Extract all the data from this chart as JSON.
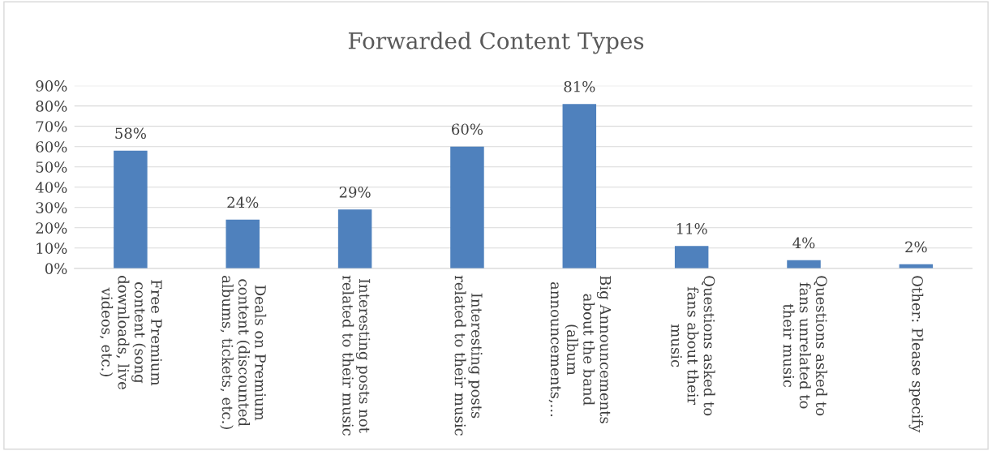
{
  "chart_data": {
    "type": "bar",
    "title": "Forwarded Content Types",
    "categories": [
      "Free Premium\ncontent (song\ndownloads, live\nvideos, etc.)",
      "Deals on Premium\ncontent (discounted\nalbums, tickets, etc.)",
      "Interesting posts not\nrelated to their music",
      "Interesting posts\nrelated to their music",
      "Big Announcements\nabout the band\n(album\nannouncements,...",
      "Questions asked to\nfans about their\nmusic",
      "Questions asked to\nfans unrelated to\ntheir music",
      "Other: Please specify"
    ],
    "values": [
      58,
      24,
      29,
      60,
      81,
      11,
      4,
      2
    ],
    "value_labels": [
      "58%",
      "24%",
      "29%",
      "60%",
      "81%",
      "11%",
      "4%",
      "2%"
    ],
    "color": "#4f81bd",
    "ylim": [
      0,
      90
    ],
    "yticks": [
      {
        "value": 0,
        "label": "0%"
      },
      {
        "value": 10,
        "label": "10%"
      },
      {
        "value": 20,
        "label": "20%"
      },
      {
        "value": 30,
        "label": "30%"
      },
      {
        "value": 40,
        "label": "40%"
      },
      {
        "value": 50,
        "label": "50%"
      },
      {
        "value": 60,
        "label": "60%"
      },
      {
        "value": 70,
        "label": "70%"
      },
      {
        "value": 80,
        "label": "80%"
      },
      {
        "value": 90,
        "label": "90%"
      }
    ],
    "grid": "y"
  }
}
